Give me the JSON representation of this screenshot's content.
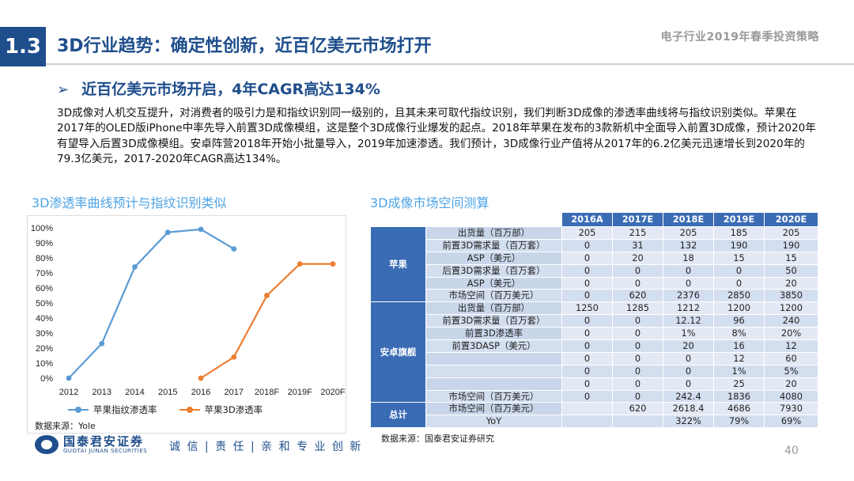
{
  "header": {
    "section_number": "1.3",
    "title": "3D行业趋势：确定性创新，近百亿美元市场打开",
    "report_title": "电子行业2019年春季投资策略"
  },
  "subheading": "近百亿美元市场开启，4年CAGR高达134%",
  "intro_text": "3D成像对人机交互提升，对消费者的吸引力是和指纹识别同一级别的，且其未来可取代指纹识别，我们判断3D成像的渗透率曲线将与指纹识别类似。苹果在2017年的OLED版iPhone中率先导入前置3D成像模组，这是整个3D成像行业爆发的起点。2018年苹果在发布的3款新机中全面导入前置3D成像，预计2020年有望导入后置3D成像模组。安卓阵营2018年开始小批量导入，2019年加速渗透。我们预计，3D成像行业产值将从2017年的6.2亿美元迅速增长到2020年的79.3亿美元，2017-2020年CAGR高达134%。",
  "left_panel": {
    "title": "3D渗透率曲线预计与指纹识别类似",
    "source": "数据来源：Yole"
  },
  "right_panel": {
    "title": "3D成像市场空间测算",
    "source": "数据来源：国泰君安证券研究"
  },
  "chart_data": {
    "type": "line",
    "title": "",
    "xlabel": "",
    "ylabel": "",
    "categories": [
      "2012",
      "2013",
      "2014",
      "2015",
      "2016",
      "2017",
      "2018F",
      "2019F",
      "2020F"
    ],
    "ylim": [
      0,
      100
    ],
    "yticks": [
      "0%",
      "10%",
      "20%",
      "30%",
      "40%",
      "50%",
      "60%",
      "70%",
      "80%",
      "90%",
      "100%"
    ],
    "grid": false,
    "legend_position": "bottom",
    "series": [
      {
        "name": "苹果指纹渗透率",
        "color": "#5b9bd5",
        "values": [
          0,
          23,
          74,
          97,
          99,
          86,
          null,
          null,
          null
        ]
      },
      {
        "name": "苹果3D渗透率",
        "color": "#ed7d31",
        "values": [
          null,
          null,
          null,
          null,
          0,
          14,
          55,
          76,
          76
        ]
      }
    ]
  },
  "table": {
    "columns": [
      "",
      "",
      "2016A",
      "2017E",
      "2018E",
      "2019E",
      "2020E"
    ],
    "groups": [
      {
        "name": "苹果",
        "rows": [
          {
            "metric": "出货量（百万部）",
            "values": [
              "205",
              "215",
              "205",
              "185",
              "205"
            ]
          },
          {
            "metric": "前置3D需求量（百万套）",
            "values": [
              "0",
              "31",
              "132",
              "190",
              "190"
            ]
          },
          {
            "metric": "ASP（美元）",
            "values": [
              "0",
              "20",
              "18",
              "15",
              "15"
            ]
          },
          {
            "metric": "后置3D需求量（百万套）",
            "values": [
              "0",
              "0",
              "0",
              "0",
              "50"
            ]
          },
          {
            "metric": "ASP（美元）",
            "values": [
              "0",
              "0",
              "0",
              "0",
              "20"
            ]
          },
          {
            "metric": "市场空间（百万美元）",
            "values": [
              "0",
              "620",
              "2376",
              "2850",
              "3850"
            ]
          }
        ]
      },
      {
        "name": "安卓旗舰",
        "rows": [
          {
            "metric": "出货量（百万部）",
            "values": [
              "1250",
              "1285",
              "1212",
              "1200",
              "1200"
            ]
          },
          {
            "metric": "前置3D需求量（百万套）",
            "values": [
              "0",
              "0",
              "12.12",
              "96",
              "240"
            ]
          },
          {
            "metric": "前置3D渗透率",
            "values": [
              "0",
              "0",
              "1%",
              "8%",
              "20%"
            ]
          },
          {
            "metric": "前置3DASP（美元）",
            "values": [
              "0",
              "0",
              "20",
              "16",
              "12"
            ]
          },
          {
            "metric": "",
            "values": [
              "0",
              "0",
              "0",
              "12",
              "60"
            ]
          },
          {
            "metric": "",
            "values": [
              "0",
              "0",
              "0",
              "1%",
              "5%"
            ]
          },
          {
            "metric": "",
            "values": [
              "0",
              "0",
              "0",
              "25",
              "20"
            ]
          },
          {
            "metric": "市场空间（百万美元）",
            "values": [
              "0",
              "0",
              "242.4",
              "1836",
              "4080"
            ]
          }
        ]
      },
      {
        "name": "总计",
        "rows": [
          {
            "metric": "市场空间（百万美元）",
            "values": [
              "",
              "620",
              "2618.4",
              "4686",
              "7930"
            ]
          },
          {
            "metric": "YoY",
            "values": [
              "",
              "",
              "322%",
              "79%",
              "69%"
            ]
          }
        ]
      }
    ]
  },
  "footer": {
    "logo_name": "国泰君安证券",
    "logo_en": "GUOTAI JUNAN SECURITIES",
    "slogan": "诚 信 | 责 任 | 亲 和  专 业  创 新",
    "page_number": "40"
  }
}
